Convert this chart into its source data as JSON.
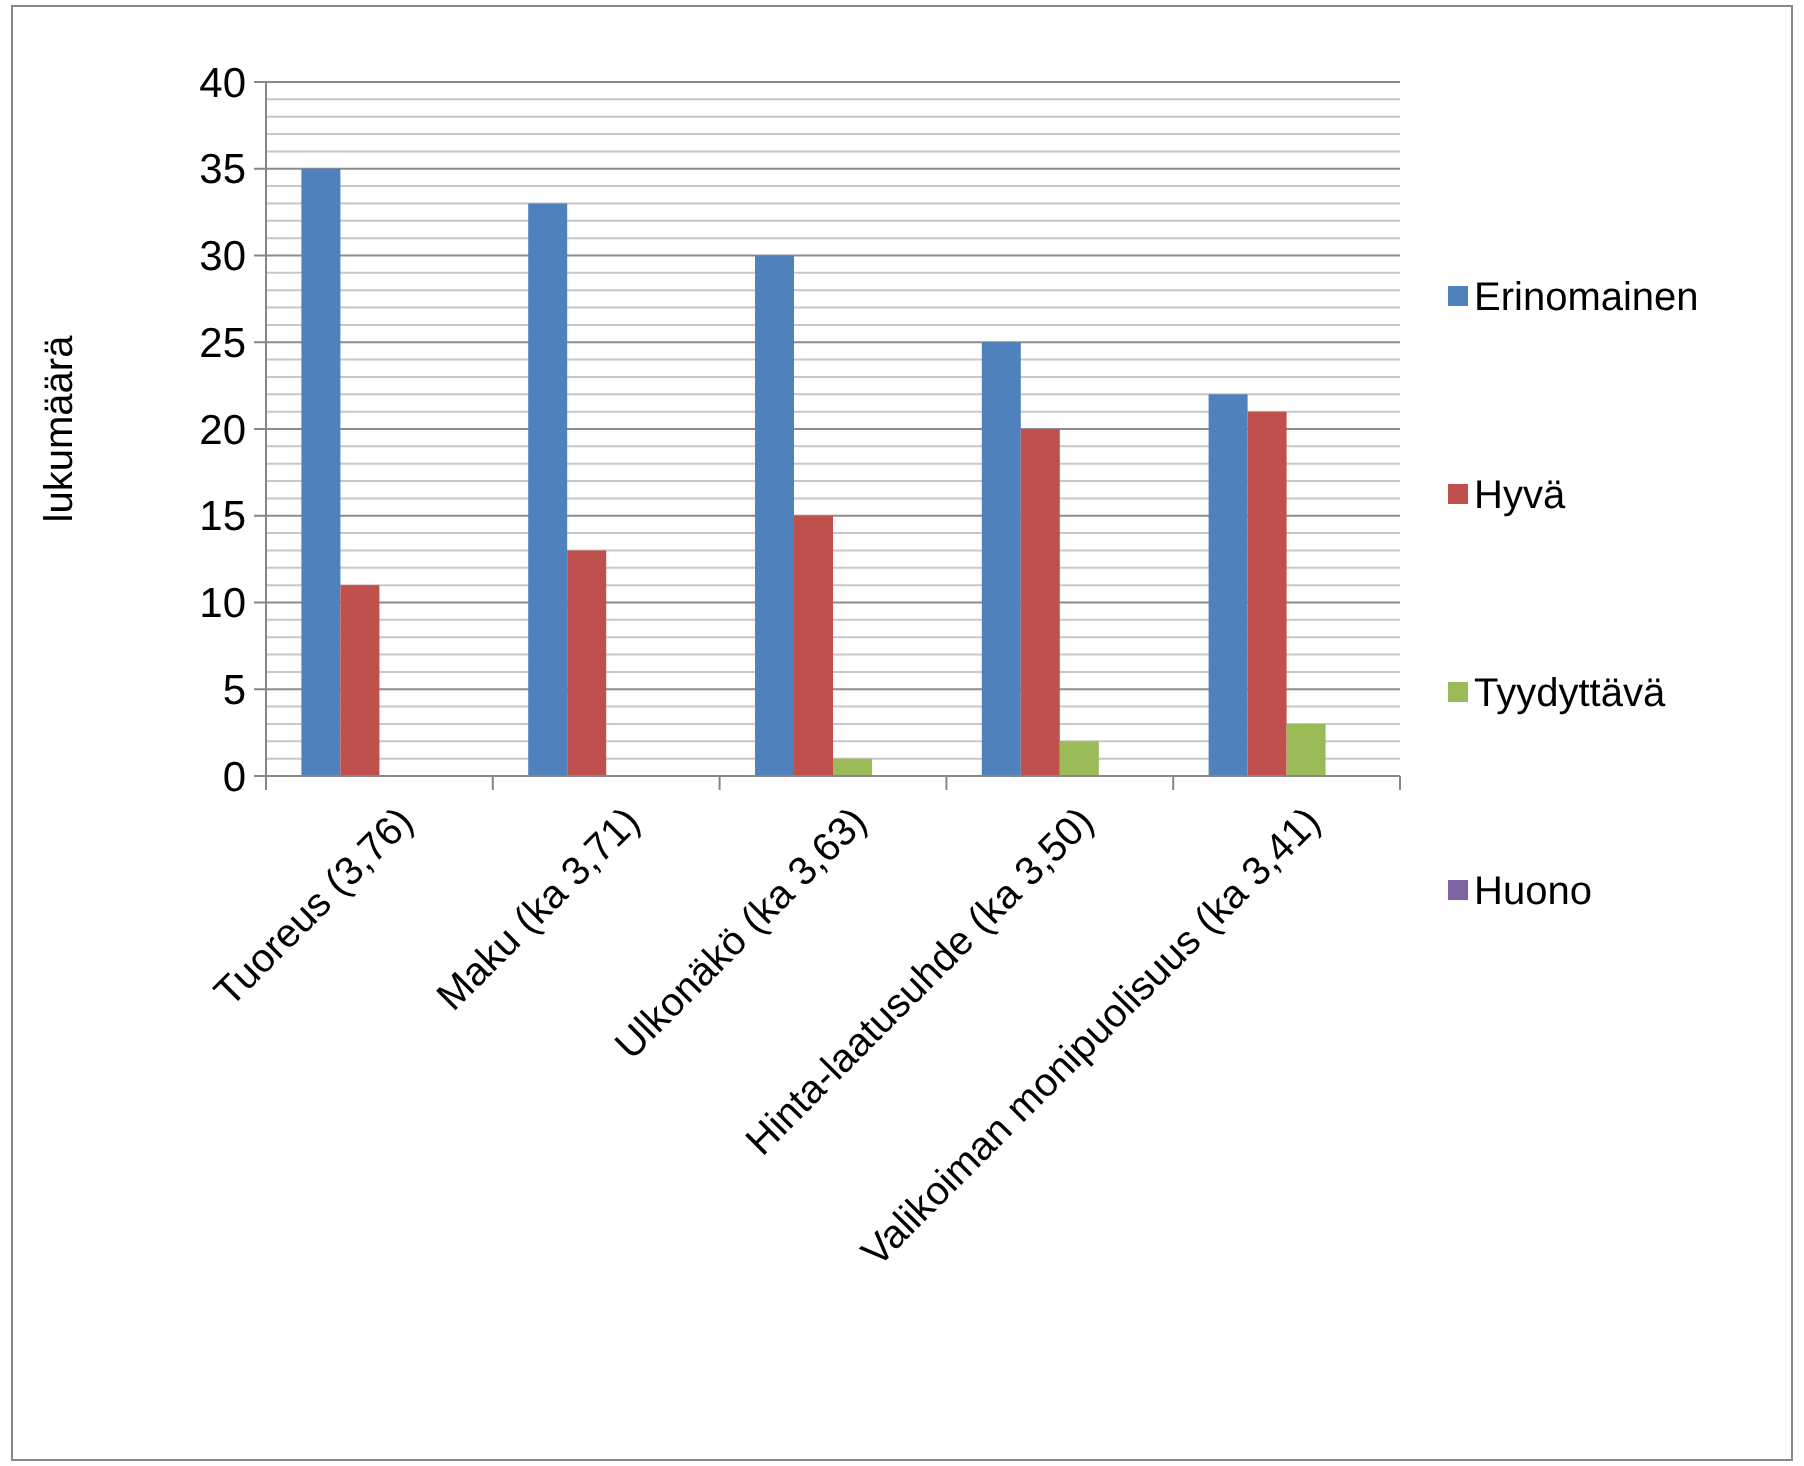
{
  "chart_data": {
    "type": "bar",
    "ylabel": "lukumäärä",
    "categories": [
      "Tuoreus (3,76)",
      "Maku (ka 3,71)",
      "Ulkonäkö (ka 3,63)",
      "Hinta-laatusuhde (ka 3,50)",
      "Valikoiman monipuolisuus (ka 3,41)"
    ],
    "series": [
      {
        "name": "Erinomainen",
        "color": "#4f81bd",
        "values": [
          35,
          33,
          30,
          25,
          22
        ]
      },
      {
        "name": "Hyvä",
        "color": "#c0504d",
        "values": [
          11,
          13,
          15,
          20,
          21
        ]
      },
      {
        "name": "Tyydyttävä",
        "color": "#9bbb59",
        "values": [
          0,
          0,
          1,
          2,
          3
        ]
      },
      {
        "name": "Huono",
        "color": "#8064a2",
        "values": [
          0,
          0,
          0,
          0,
          0
        ]
      }
    ],
    "ylim": [
      0,
      40
    ],
    "yticks": [
      0,
      {
        "value": 1,
        "label": null
      },
      {
        "value": 2,
        "label": null
      },
      {
        "value": 3,
        "label": null
      },
      {
        "value": 4,
        "label": null
      },
      5,
      {
        "value": 6,
        "label": null
      },
      {
        "value": 7,
        "label": null
      },
      {
        "value": 8,
        "label": null
      },
      {
        "value": 9,
        "label": null
      },
      10,
      {
        "value": 11,
        "label": null
      },
      {
        "value": 12,
        "label": null
      },
      {
        "value": 13,
        "label": null
      },
      {
        "value": 14,
        "label": null
      },
      15,
      {
        "value": 16,
        "label": null
      },
      {
        "value": 17,
        "label": null
      },
      {
        "value": 18,
        "label": null
      },
      {
        "value": 19,
        "label": null
      },
      20,
      {
        "value": 21,
        "label": null
      },
      {
        "value": 22,
        "label": null
      },
      {
        "value": 23,
        "label": null
      },
      {
        "value": 24,
        "label": null
      },
      25,
      {
        "value": 26,
        "label": null
      },
      {
        "value": 27,
        "label": null
      },
      {
        "value": 28,
        "label": null
      },
      {
        "value": 29,
        "label": null
      },
      30,
      {
        "value": 31,
        "label": null
      },
      {
        "value": 32,
        "label": null
      },
      {
        "value": 33,
        "label": null
      },
      {
        "value": 34,
        "label": null
      },
      35,
      {
        "value": 36,
        "label": null
      },
      {
        "value": 37,
        "label": null
      },
      {
        "value": 38,
        "label": null
      },
      {
        "value": 39,
        "label": null
      },
      40
    ],
    "grid": "y",
    "legend": "right"
  }
}
